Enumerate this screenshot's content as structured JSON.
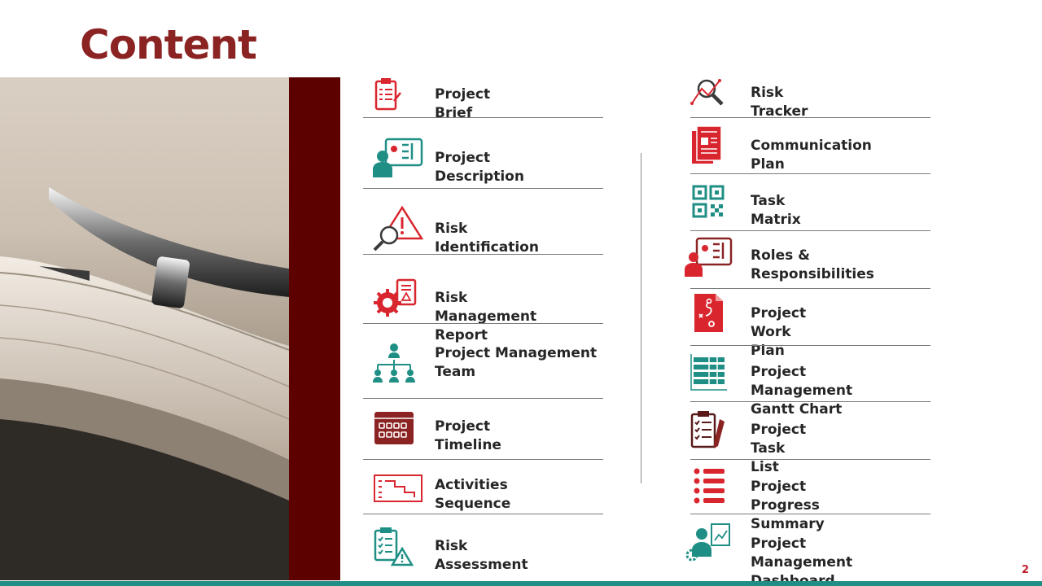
{
  "title": "Content",
  "page_number": "2",
  "colors": {
    "title": "#8b2323",
    "maroon": "#5c0000",
    "red": "#d9262e",
    "teal": "#1f8f85"
  },
  "left_items": [
    {
      "label": "Project Brief",
      "icon": "clipboard-checklist-icon"
    },
    {
      "label": "Project Description",
      "icon": "presenter-diagram-icon"
    },
    {
      "label": "Risk Identification",
      "icon": "magnifier-warning-icon"
    },
    {
      "label": "Risk Management Report",
      "icon": "gear-report-icon"
    },
    {
      "label": "Project Management Team",
      "icon": "org-chart-icon"
    },
    {
      "label": "Project Timeline",
      "icon": "calendar-icon"
    },
    {
      "label": "Activities Sequence",
      "icon": "process-flow-icon"
    },
    {
      "label": "Risk Assessment",
      "icon": "checklist-warning-icon"
    }
  ],
  "right_items": [
    {
      "label": "Risk Tracker",
      "icon": "magnifier-trend-icon"
    },
    {
      "label": "Communication Plan",
      "icon": "documents-icon"
    },
    {
      "label": "Task Matrix",
      "icon": "qr-matrix-icon"
    },
    {
      "label": "Roles & Responsibilities",
      "icon": "presenter-diagram-icon"
    },
    {
      "label": "Project Work Plan",
      "icon": "document-path-icon"
    },
    {
      "label": "Project Management Gantt Chart",
      "icon": "gantt-chart-icon"
    },
    {
      "label": "Project Task List",
      "icon": "clipboard-pencil-icon"
    },
    {
      "label": "Project Progress Summary",
      "icon": "bullet-list-icon"
    },
    {
      "label": "Project Management Dashboard",
      "icon": "analyst-dashboard-icon"
    }
  ]
}
